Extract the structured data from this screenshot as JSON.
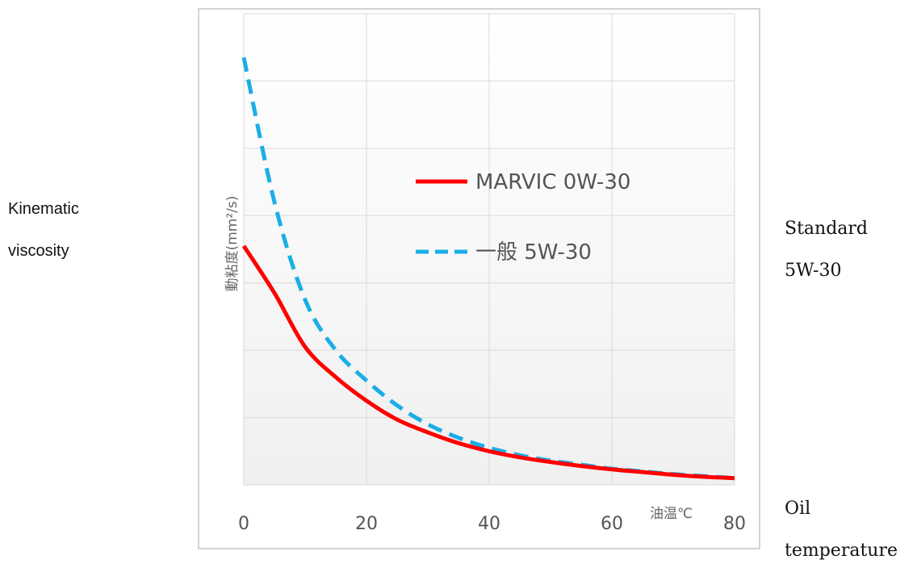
{
  "side_notes": {
    "left": [
      "Kinematic",
      "viscosity"
    ],
    "right_top": [
      "Standard",
      "5W-30"
    ],
    "right_bottom": [
      "Oil",
      "temperature"
    ]
  },
  "chart_data": {
    "type": "line",
    "title": "",
    "xlabel": "油温℃",
    "ylabel": "動粘度(mm²/s)",
    "xlim": [
      0,
      80
    ],
    "x_ticks": [
      0,
      20,
      40,
      60,
      80
    ],
    "y_ticks_shown": false,
    "grid": true,
    "legend_placement": "center-right",
    "series": [
      {
        "name": "MARVIC 0W-30",
        "color": "#ff0000",
        "style": "solid",
        "x": [
          0,
          5,
          10,
          15,
          20,
          25,
          30,
          35,
          40,
          45,
          50,
          55,
          60,
          65,
          70,
          75,
          80
        ],
        "y": [
          3.55,
          2.85,
          2.05,
          1.6,
          1.25,
          0.97,
          0.78,
          0.62,
          0.5,
          0.41,
          0.34,
          0.28,
          0.23,
          0.19,
          0.15,
          0.12,
          0.1
        ]
      },
      {
        "name": "一般 5W-30",
        "color": "#1aaee6",
        "style": "dashed",
        "x": [
          0,
          5,
          10,
          15,
          20,
          25,
          30,
          35,
          40,
          45,
          50,
          55,
          60,
          65,
          70,
          75,
          80
        ],
        "y": [
          6.35,
          4.2,
          2.75,
          2.0,
          1.55,
          1.18,
          0.9,
          0.7,
          0.55,
          0.44,
          0.36,
          0.3,
          0.24,
          0.2,
          0.16,
          0.13,
          0.1
        ]
      }
    ]
  }
}
